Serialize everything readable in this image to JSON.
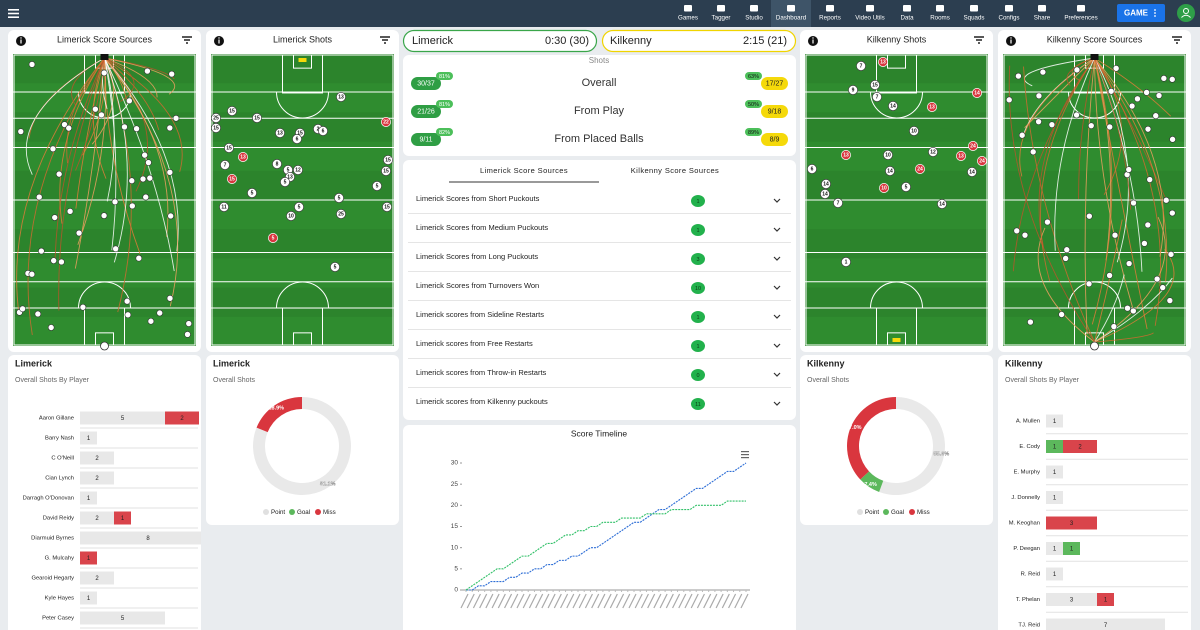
{
  "nav": {
    "items": [
      "Games",
      "Tagger",
      "Studio",
      "Dashboard",
      "Reports",
      "Video Utils",
      "Data",
      "Rooms",
      "Squads",
      "Configs",
      "Share",
      "Preferences"
    ],
    "active": 3,
    "button": "GAME"
  },
  "scoreboard": {
    "home": {
      "team": "Limerick",
      "score": "0:30 (30)"
    },
    "away": {
      "team": "Kilkenny",
      "score": "2:15 (21)"
    }
  },
  "shots_summary": {
    "title": "Shots",
    "rows": [
      {
        "label": "Overall",
        "home": "30/37",
        "home_pct": "81%",
        "away": "17/27",
        "away_pct": "63%"
      },
      {
        "label": "From Play",
        "home": "21/26",
        "home_pct": "81%",
        "away": "9/18",
        "away_pct": "50%"
      },
      {
        "label": "From Placed Balls",
        "home": "9/11",
        "home_pct": "82%",
        "away": "8/9",
        "away_pct": "89%"
      }
    ]
  },
  "pitch_panels": [
    {
      "title": "Limerick Score Sources"
    },
    {
      "title": "Limerick Shots",
      "markers": [
        {
          "label": "13",
          "result": "score"
        },
        {
          "label": "15",
          "result": "score"
        },
        {
          "label": "25",
          "result": "score"
        },
        {
          "label": "15",
          "result": "score"
        },
        {
          "label": "15",
          "result": "score"
        },
        {
          "label": "22",
          "result": "miss"
        },
        {
          "label": "13",
          "result": "score"
        },
        {
          "label": "15",
          "result": "score"
        },
        {
          "label": "2",
          "result": "score"
        },
        {
          "label": "6",
          "result": "score"
        },
        {
          "label": "6",
          "result": "score"
        },
        {
          "label": "15",
          "result": "score"
        },
        {
          "label": "13",
          "result": "miss"
        },
        {
          "label": "15",
          "result": "score"
        },
        {
          "label": "7",
          "result": "score"
        },
        {
          "label": "8",
          "result": "score"
        },
        {
          "label": "12",
          "result": "score"
        },
        {
          "label": "5",
          "result": "score"
        },
        {
          "label": "13",
          "result": "score"
        },
        {
          "label": "15",
          "result": "miss"
        },
        {
          "label": "5",
          "result": "score"
        },
        {
          "label": "15",
          "result": "score"
        },
        {
          "label": "5",
          "result": "score"
        },
        {
          "label": "5",
          "result": "score"
        },
        {
          "label": "5",
          "result": "score"
        },
        {
          "label": "11",
          "result": "score"
        },
        {
          "label": "5",
          "result": "score"
        },
        {
          "label": "10",
          "result": "score"
        },
        {
          "label": "25",
          "result": "score"
        },
        {
          "label": "15",
          "result": "score"
        },
        {
          "label": "5",
          "result": "miss"
        },
        {
          "label": "5",
          "result": "score"
        }
      ]
    },
    {
      "title": "Kilkenny Shots",
      "markers": [
        {
          "label": "7",
          "result": "score"
        },
        {
          "label": "13",
          "result": "miss"
        },
        {
          "label": "9",
          "result": "score"
        },
        {
          "label": "15",
          "result": "score"
        },
        {
          "label": "7",
          "result": "score"
        },
        {
          "label": "14",
          "result": "score"
        },
        {
          "label": "13",
          "result": "miss"
        },
        {
          "label": "14",
          "result": "miss"
        },
        {
          "label": "10",
          "result": "score"
        },
        {
          "label": "12",
          "result": "score"
        },
        {
          "label": "13",
          "result": "miss"
        },
        {
          "label": "10",
          "result": "score"
        },
        {
          "label": "13",
          "result": "miss"
        },
        {
          "label": "24",
          "result": "miss"
        },
        {
          "label": "24",
          "result": "miss"
        },
        {
          "label": "6",
          "result": "score"
        },
        {
          "label": "14",
          "result": "score"
        },
        {
          "label": "24",
          "result": "miss"
        },
        {
          "label": "14",
          "result": "score"
        },
        {
          "label": "14",
          "result": "score"
        },
        {
          "label": "10",
          "result": "miss"
        },
        {
          "label": "5",
          "result": "score"
        },
        {
          "label": "14",
          "result": "score"
        },
        {
          "label": "7",
          "result": "score"
        },
        {
          "label": "14",
          "result": "score"
        },
        {
          "label": "1",
          "result": "score"
        }
      ]
    },
    {
      "title": "Kilkenny Score Sources"
    }
  ],
  "score_sources": {
    "tabs": [
      "Limerick Score Sources",
      "Kilkenny Score Sources"
    ],
    "active_tab": 0,
    "rows": [
      {
        "label": "Limerick Scores from Short Puckouts",
        "count": 1
      },
      {
        "label": "Limerick Scores from Medium Puckouts",
        "count": 1
      },
      {
        "label": "Limerick Scores from Long Puckouts",
        "count": 3
      },
      {
        "label": "Limerick Scores from Turnovers Won",
        "count": 10
      },
      {
        "label": "Limerick scores from Sideline Restarts",
        "count": 1
      },
      {
        "label": "Limerick scores from Free Restarts",
        "count": 1
      },
      {
        "label": "Limerick scores from Throw-in Restarts",
        "count": 0
      },
      {
        "label": "Limerick scores from Kilkenny puckouts",
        "count": 11
      }
    ]
  },
  "chart_data": [
    {
      "type": "bar",
      "orientation": "horizontal",
      "stacked": true,
      "title": "Limerick",
      "subtitle": "Overall Shots By Player",
      "categories": [
        "Aaron Gillane",
        "Barry Nash",
        "C O'Neill",
        "Cian Lynch",
        "Darragh O'Donovan",
        "David Reidy",
        "Diarmuid Byrnes",
        "G. Mulcahy",
        "Gearoid Hegarty",
        "Kyle Hayes",
        "Peter Casey"
      ],
      "series": [
        {
          "color": "#e8e8e8",
          "values": [
            5,
            1,
            2,
            2,
            1,
            2,
            8,
            0,
            2,
            1,
            5
          ]
        },
        {
          "color": "#5cb85c",
          "values": [
            0,
            0,
            0,
            0,
            0,
            0,
            0,
            0,
            0,
            0,
            0
          ]
        },
        {
          "color": "#d9444b",
          "values": [
            2,
            0,
            0,
            0,
            0,
            1,
            0,
            1,
            0,
            0,
            0
          ]
        }
      ]
    },
    {
      "type": "pie",
      "donut": true,
      "title": "Limerick",
      "subtitle": "Overall Shots",
      "categories": [
        "Point",
        "Goal",
        "Miss"
      ],
      "values": [
        81.1,
        0,
        18.9
      ],
      "value_labels": [
        "81.1%",
        null,
        "18.9%"
      ],
      "colors": [
        "#e9e9e9",
        "#5cb85c",
        "#d9363e"
      ]
    },
    {
      "type": "line",
      "title": "Score Timeline",
      "categories": [
        null,
        null,
        null,
        null,
        null,
        null,
        null,
        null,
        null,
        null,
        null,
        null,
        null,
        null,
        null,
        null,
        null,
        null,
        null,
        null,
        null,
        null,
        null,
        null,
        null,
        null,
        null,
        null,
        null,
        null,
        null,
        null,
        null,
        null,
        null,
        null,
        null,
        null,
        null,
        null,
        null,
        null,
        null,
        null,
        null,
        null
      ],
      "series": [
        {
          "color": "#2f6fd6",
          "values": [
            0,
            0,
            1,
            1,
            2,
            2,
            2,
            3,
            3,
            4,
            4,
            5,
            5,
            6,
            6,
            7,
            7,
            8,
            8,
            9,
            10,
            10,
            11,
            12,
            13,
            14,
            15,
            16,
            16,
            17,
            18,
            19,
            19,
            20,
            21,
            22,
            23,
            24,
            24,
            25,
            26,
            27,
            28,
            28,
            29,
            30
          ]
        },
        {
          "color": "#33c16a",
          "values": [
            0,
            1,
            2,
            3,
            4,
            5,
            5,
            6,
            7,
            8,
            8,
            9,
            10,
            11,
            11,
            12,
            13,
            13,
            14,
            14,
            15,
            15,
            16,
            16,
            16,
            17,
            17,
            17,
            17,
            18,
            18,
            18,
            18,
            19,
            19,
            19,
            19,
            20,
            20,
            20,
            20,
            20,
            21,
            21,
            21,
            21
          ]
        }
      ],
      "ylim": [
        0,
        30
      ],
      "yticks": [
        0,
        5,
        10,
        15,
        20,
        25,
        30
      ]
    },
    {
      "type": "pie",
      "donut": true,
      "title": "Kilkenny",
      "subtitle": "Overall Shots",
      "categories": [
        "Point",
        "Goal",
        "Miss"
      ],
      "values": [
        55.6,
        7.4,
        37.0
      ],
      "value_labels": [
        "55.6%",
        "7.4%",
        "37.0%"
      ],
      "colors": [
        "#e9e9e9",
        "#5cb85c",
        "#d9363e"
      ]
    },
    {
      "type": "bar",
      "orientation": "horizontal",
      "stacked": true,
      "title": "Kilkenny",
      "subtitle": "Overall Shots By Player",
      "categories": [
        "A. Mullen",
        "E. Cody",
        "E. Murphy",
        "J. Donnelly",
        "M. Keoghan",
        "P. Deegan",
        "R. Reid",
        "T. Phelan",
        "TJ. Reid"
      ],
      "series": [
        {
          "color": "#e8e8e8",
          "values": [
            1,
            0,
            1,
            1,
            0,
            1,
            1,
            3,
            7
          ]
        },
        {
          "color": "#5cb85c",
          "values": [
            0,
            1,
            0,
            0,
            0,
            1,
            0,
            0,
            0
          ]
        },
        {
          "color": "#d9444b",
          "values": [
            0,
            2,
            0,
            0,
            3,
            0,
            0,
            1,
            0
          ]
        }
      ]
    }
  ]
}
